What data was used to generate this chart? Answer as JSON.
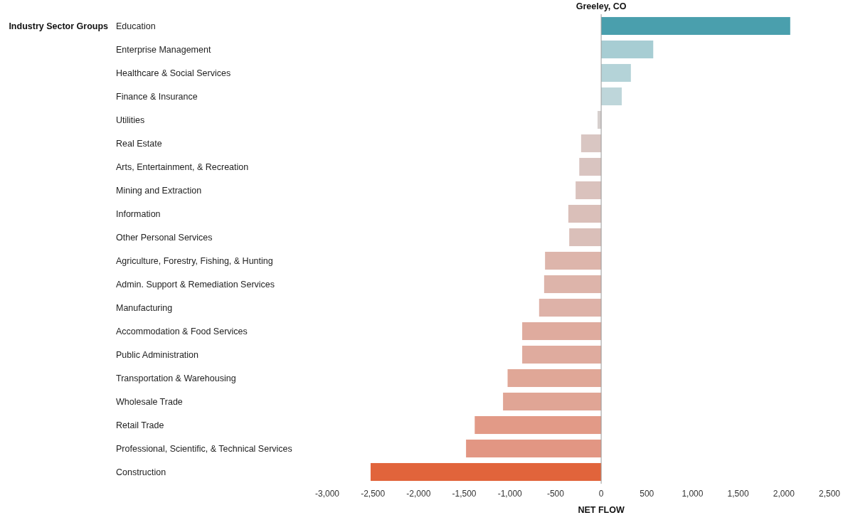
{
  "chart_data": {
    "type": "bar",
    "orientation": "horizontal",
    "title": "Greeley, CO",
    "xlabel": "NET FLOW",
    "ylabel": "Industry Sector Groups",
    "categories": [
      "Education",
      "Enterprise Management",
      "Healthcare & Social Services",
      "Finance & Insurance",
      "Utilities",
      "Real Estate",
      "Arts, Entertainment, & Recreation",
      "Mining and Extraction",
      "Information",
      "Other Personal Services",
      "Agriculture, Forestry, Fishing, & Hunting",
      "Admin. Support & Remediation Services",
      "Manufacturing",
      "Accommodation & Food Services",
      "Public Administration",
      "Transportation & Warehousing",
      "Wholesale Trade",
      "Retail Trade",
      "Professional, Scientific, & Technical Services",
      "Construction"
    ],
    "values": [
      2070,
      570,
      325,
      225,
      -40,
      -220,
      -240,
      -280,
      -360,
      -350,
      -615,
      -625,
      -680,
      -865,
      -865,
      -1025,
      -1075,
      -1385,
      -1480,
      -2525
    ],
    "colors": [
      "#4a9fad",
      "#a7cdd3",
      "#b4d3d8",
      "#bed6da",
      "#d6cfcd",
      "#d9c6c2",
      "#d9c4c0",
      "#dac2bd",
      "#dabfb9",
      "#dabfb9",
      "#ddb5ab",
      "#ddb4aa",
      "#deb2a8",
      "#dfab9e",
      "#dfab9e",
      "#e0a797",
      "#e0a595",
      "#e29a87",
      "#e29683",
      "#e1643b"
    ],
    "xlim": [
      -3000,
      2500
    ],
    "xticks": [
      {
        "value": -3000,
        "label": "-3,000"
      },
      {
        "value": -2500,
        "label": "-2,500"
      },
      {
        "value": -2000,
        "label": "-2,000"
      },
      {
        "value": -1500,
        "label": "-1,500"
      },
      {
        "value": -1000,
        "label": "-1,000"
      },
      -500,
      0,
      500,
      {
        "value": 1000,
        "label": "1,000"
      },
      {
        "value": 1500,
        "label": "1,500"
      },
      {
        "value": 2000,
        "label": "2,000"
      },
      {
        "value": 2500,
        "label": "2,500"
      }
    ]
  }
}
